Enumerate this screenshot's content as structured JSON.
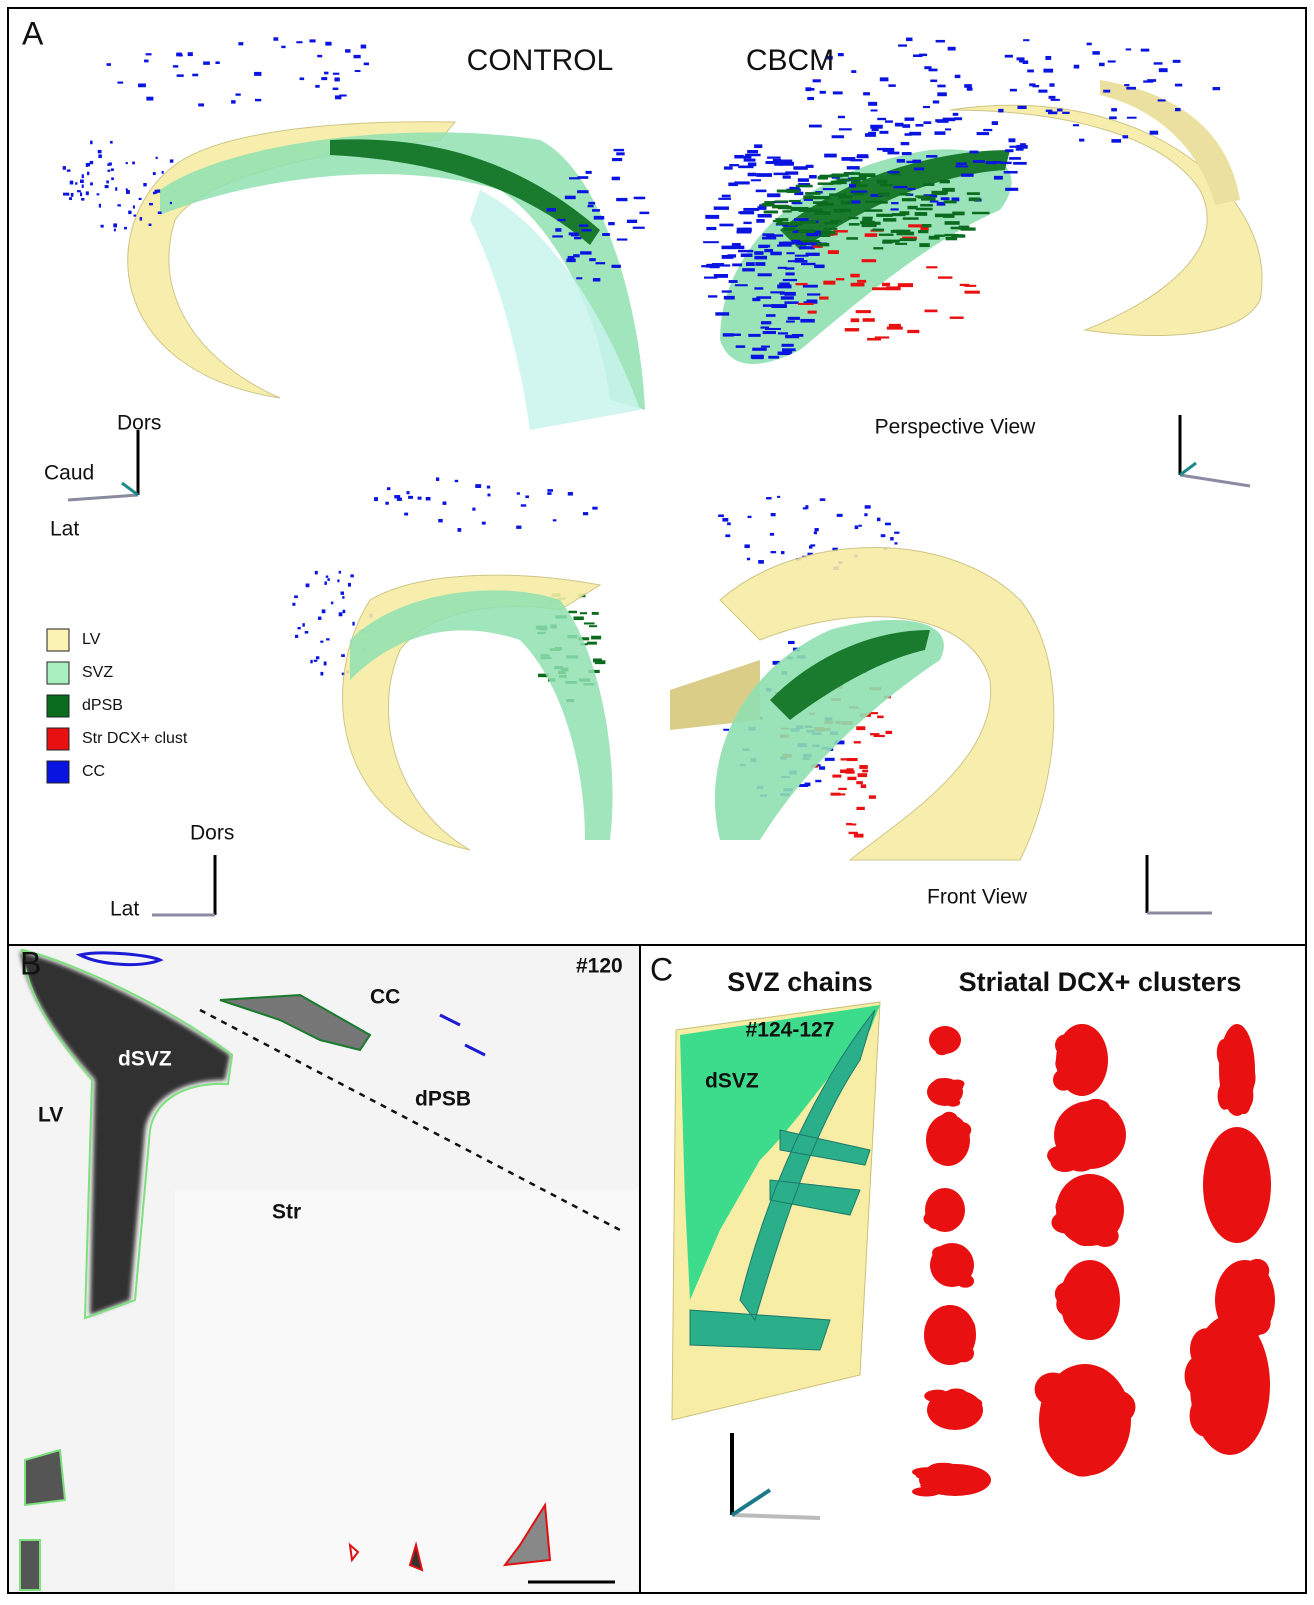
{
  "panel_a": {
    "label": "A",
    "conditions": [
      "CONTROL",
      "CBCM"
    ],
    "perspective_axes": {
      "dorsal": "Dors",
      "caudal": "Caud",
      "lateral": "Lat"
    },
    "perspective_view": "Perspective View",
    "legend": [
      {
        "label": "LV",
        "color": "#fbf3b4"
      },
      {
        "label": "SVZ",
        "color": "#a8f0c0"
      },
      {
        "label": "dPSB",
        "color": "#0b6b1f"
      },
      {
        "label": "Str DCX+ clust",
        "color": "#e81010"
      },
      {
        "label": "CC",
        "color": "#0a14e0"
      }
    ],
    "front_axes": {
      "dorsal": "Dors",
      "lateral": "Lat"
    },
    "front_view": "Front View"
  },
  "panel_b": {
    "label": "B",
    "section": "#120",
    "regions": {
      "cc": "CC",
      "dsvz": "dSVZ",
      "lv": "LV",
      "dpsb": "dPSB",
      "str": "Str"
    }
  },
  "panel_c": {
    "label": "C",
    "titles": [
      "SVZ chains",
      "Striatal DCX+ clusters"
    ],
    "sections": "#124-127",
    "region": "dSVZ"
  }
}
